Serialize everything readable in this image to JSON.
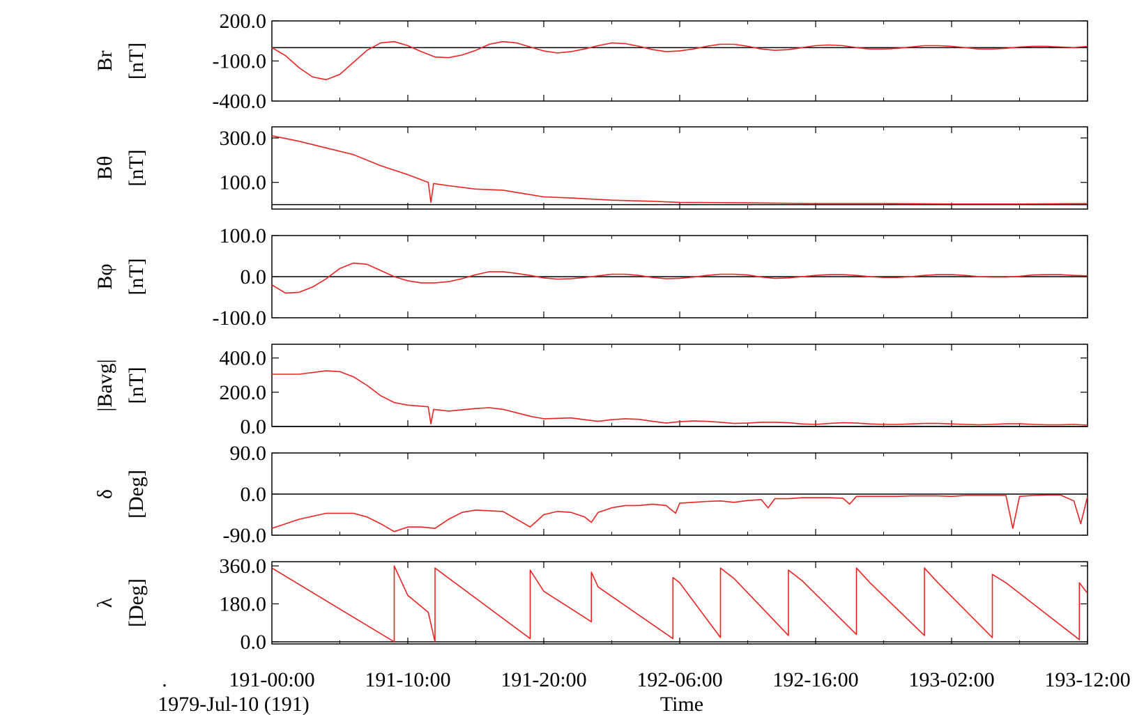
{
  "chart_data": [
    {
      "type": "line",
      "ylabel": "Br",
      "unit": "[nT]",
      "ylim": [
        -400,
        200
      ],
      "yticks": [
        "200.0",
        "-100.0",
        "-400.0"
      ],
      "ytick_values": [
        200,
        -100,
        -400
      ],
      "zero_line": 0,
      "series": [
        {
          "x": [
            0,
            1,
            2,
            3,
            4,
            5,
            6,
            7,
            8,
            9,
            10,
            11,
            12,
            13,
            14,
            15,
            16,
            17,
            18,
            19,
            20,
            21,
            22,
            23,
            24,
            25,
            26,
            27,
            28,
            29,
            30,
            31,
            32,
            33,
            34,
            35,
            36,
            37,
            38,
            39,
            40,
            41,
            42,
            43,
            44,
            45,
            46,
            47,
            48,
            49,
            50,
            51,
            52,
            53,
            54,
            55,
            56,
            57,
            58,
            59,
            60
          ],
          "y": [
            0,
            -60,
            -150,
            -220,
            -240,
            -200,
            -110,
            -20,
            35,
            45,
            15,
            -30,
            -70,
            -75,
            -55,
            -20,
            25,
            45,
            35,
            5,
            -25,
            -40,
            -30,
            -10,
            15,
            35,
            30,
            10,
            -15,
            -30,
            -25,
            -10,
            10,
            25,
            25,
            10,
            -10,
            -20,
            -15,
            0,
            15,
            20,
            15,
            0,
            -10,
            -10,
            -5,
            5,
            15,
            15,
            10,
            0,
            -10,
            -10,
            -5,
            5,
            10,
            10,
            5,
            0,
            10
          ]
        }
      ]
    },
    {
      "type": "line",
      "ylabel": "Bθ",
      "unit": "[nT]",
      "ylim": [
        -20,
        350
      ],
      "yticks": [
        "300.0",
        "100.0"
      ],
      "ytick_values": [
        300,
        100
      ],
      "zero_line": 0,
      "series": [
        {
          "x": [
            0,
            2,
            4,
            6,
            8,
            10,
            11.5,
            11.7,
            11.9,
            13,
            15,
            17,
            19,
            20,
            22,
            25,
            28,
            30,
            35,
            40,
            45,
            50,
            55,
            60
          ],
          "y": [
            310,
            285,
            255,
            225,
            175,
            135,
            100,
            10,
            95,
            85,
            70,
            65,
            45,
            35,
            30,
            20,
            15,
            10,
            8,
            5,
            5,
            3,
            3,
            5
          ]
        }
      ]
    },
    {
      "type": "line",
      "ylabel": "Bφ",
      "unit": "[nT]",
      "ylim": [
        -100,
        100
      ],
      "yticks": [
        "100.0",
        "0.0",
        "-100.0"
      ],
      "ytick_values": [
        100,
        0,
        -100
      ],
      "zero_line": 0,
      "series": [
        {
          "x": [
            0,
            1,
            2,
            3,
            4,
            5,
            6,
            7,
            8,
            9,
            10,
            11,
            12,
            13,
            14,
            15,
            16,
            17,
            18,
            19,
            20,
            21,
            22,
            23,
            24,
            25,
            26,
            27,
            28,
            29,
            30,
            31,
            32,
            33,
            34,
            35,
            36,
            37,
            38,
            39,
            40,
            41,
            42,
            43,
            44,
            45,
            46,
            47,
            48,
            49,
            50,
            51,
            52,
            53,
            54,
            55,
            56,
            57,
            58,
            59,
            60
          ],
          "y": [
            -20,
            -40,
            -38,
            -25,
            -5,
            20,
            33,
            30,
            15,
            0,
            -10,
            -15,
            -15,
            -12,
            -5,
            5,
            12,
            12,
            8,
            3,
            -3,
            -6,
            -5,
            -2,
            2,
            6,
            6,
            3,
            -2,
            -5,
            -4,
            -1,
            3,
            6,
            6,
            4,
            -1,
            -4,
            -3,
            0,
            3,
            5,
            5,
            3,
            0,
            -2,
            -2,
            0,
            3,
            5,
            5,
            3,
            0,
            -1,
            -1,
            1,
            4,
            5,
            5,
            3,
            2
          ]
        }
      ]
    },
    {
      "type": "line",
      "ylabel": "|Bavg|",
      "unit": "[nT]",
      "ylim": [
        0,
        480
      ],
      "yticks": [
        "400.0",
        "200.0",
        "0.0"
      ],
      "ytick_values": [
        400,
        200,
        0
      ],
      "zero_line": 0,
      "series": [
        {
          "x": [
            0,
            2,
            4,
            5,
            6,
            7,
            8,
            9,
            10,
            11.5,
            11.7,
            11.9,
            13,
            15,
            16,
            17,
            18,
            19,
            20,
            22,
            23,
            24,
            25,
            26,
            27,
            28,
            29,
            30,
            31,
            32,
            33,
            34,
            35,
            36,
            37,
            38,
            39,
            40,
            41,
            42,
            43,
            44,
            45,
            46,
            47,
            48,
            49,
            50,
            51,
            52,
            53,
            54,
            55,
            56,
            57,
            58,
            59,
            60
          ],
          "y": [
            305,
            305,
            325,
            320,
            290,
            240,
            180,
            140,
            125,
            115,
            15,
            100,
            90,
            105,
            110,
            100,
            80,
            60,
            45,
            50,
            40,
            30,
            40,
            45,
            42,
            30,
            20,
            28,
            32,
            30,
            25,
            18,
            20,
            25,
            25,
            22,
            15,
            12,
            18,
            22,
            20,
            15,
            12,
            12,
            15,
            18,
            18,
            15,
            12,
            10,
            12,
            16,
            16,
            12,
            10,
            10,
            12,
            8
          ]
        }
      ]
    },
    {
      "type": "line",
      "ylabel": "δ",
      "unit": "[Deg]",
      "ylim": [
        -90,
        90
      ],
      "yticks": [
        "90.0",
        "0.0",
        "-90.0"
      ],
      "ytick_values": [
        90,
        0,
        -90
      ],
      "zero_line": 0,
      "series": [
        {
          "x": [
            0,
            2,
            4,
            6,
            7,
            8,
            9,
            10,
            11,
            12,
            13,
            14,
            15,
            17,
            18,
            19,
            20,
            21,
            22,
            23,
            23.5,
            24,
            25,
            26,
            27,
            28,
            29,
            29.7,
            30,
            31,
            32,
            33,
            34,
            35,
            36,
            36.5,
            37,
            38,
            39,
            40,
            41,
            42,
            42.5,
            43,
            44,
            45,
            46,
            47,
            48,
            49,
            50,
            51,
            52,
            53,
            54,
            54.5,
            55,
            56,
            57,
            58,
            59,
            59.5,
            60
          ],
          "y": [
            -75,
            -55,
            -42,
            -42,
            -50,
            -65,
            -82,
            -72,
            -72,
            -75,
            -55,
            -40,
            -35,
            -38,
            -55,
            -72,
            -45,
            -38,
            -40,
            -50,
            -62,
            -40,
            -30,
            -25,
            -25,
            -22,
            -25,
            -42,
            -20,
            -18,
            -16,
            -15,
            -18,
            -14,
            -12,
            -30,
            -10,
            -10,
            -8,
            -8,
            -8,
            -9,
            -22,
            -5,
            -5,
            -5,
            -5,
            -4,
            -4,
            -4,
            -5,
            -3,
            -3,
            -3,
            -3,
            -75,
            -5,
            -3,
            -2,
            -2,
            -15,
            -65,
            -5
          ]
        }
      ]
    },
    {
      "type": "line",
      "ylabel": "λ",
      "unit": "[Deg]",
      "ylim": [
        -10,
        380
      ],
      "yticks": [
        "360.0",
        "180.0",
        "0.0"
      ],
      "ytick_values": [
        360,
        180,
        0
      ],
      "zero_line": 0,
      "series": [
        {
          "x": [
            0,
            9,
            9.001,
            10,
            11.5,
            12,
            12.001,
            19,
            19.001,
            20,
            23.5,
            23.501,
            24,
            29.5,
            29.501,
            30,
            33,
            33.001,
            34,
            38,
            38.001,
            39,
            43,
            43.001,
            44,
            48,
            48.001,
            49,
            53,
            53.001,
            54,
            59.4,
            59.401,
            60
          ],
          "y": [
            350,
            0,
            360,
            220,
            140,
            0,
            350,
            15,
            340,
            240,
            95,
            330,
            260,
            15,
            305,
            280,
            20,
            350,
            300,
            30,
            340,
            290,
            35,
            350,
            280,
            30,
            350,
            280,
            20,
            320,
            280,
            10,
            280,
            230
          ]
        }
      ]
    }
  ],
  "x_axis": {
    "range": [
      0,
      60
    ],
    "tick_values": [
      10,
      20,
      30,
      40,
      50,
      60
    ],
    "tick_labels": [
      "191-00:00",
      "191-10:00",
      "191-20:00",
      "192-06:00",
      "192-16:00",
      "193-02:00",
      "193-12:00"
    ],
    "tick_label_values": [
      0,
      10,
      20,
      30,
      40,
      50,
      60
    ],
    "leading_mark": ".",
    "date_label": "1979-Jul-10 (191)",
    "xlabel": "Time"
  },
  "colors": {
    "series": "#e8231f",
    "axes": "#000000",
    "zero_line": "#000000"
  }
}
